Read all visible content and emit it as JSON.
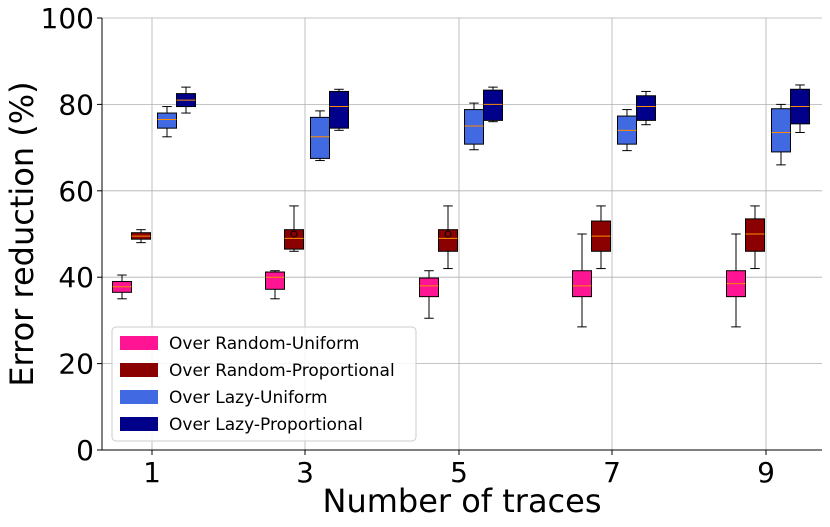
{
  "chart_data": {
    "type": "box",
    "xlabel": "Number of traces",
    "ylabel": "Error reduction (%)",
    "ylim": [
      0,
      100
    ],
    "yticks": [
      0,
      20,
      40,
      60,
      80,
      100
    ],
    "categories": [
      "1",
      "3",
      "5",
      "7",
      "9"
    ],
    "grid": true,
    "legend_position": "bottom-left",
    "series": [
      {
        "name": "Over Random-Uniform",
        "color": "#ff1493",
        "boxes": [
          {
            "whisker_low": 35.0,
            "q1": 36.5,
            "median": 37.8,
            "q3": 39.0,
            "whisker_high": 40.5,
            "outliers": []
          },
          {
            "whisker_low": 35.0,
            "q1": 37.2,
            "median": 40.0,
            "q3": 41.2,
            "whisker_high": 41.5,
            "outliers": []
          },
          {
            "whisker_low": 30.5,
            "q1": 35.5,
            "median": 38.0,
            "q3": 39.8,
            "whisker_high": 41.5,
            "outliers": []
          },
          {
            "whisker_low": 28.5,
            "q1": 35.5,
            "median": 38.0,
            "q3": 41.5,
            "whisker_high": 50.0,
            "outliers": []
          },
          {
            "whisker_low": 28.5,
            "q1": 35.5,
            "median": 38.5,
            "q3": 41.5,
            "whisker_high": 50.0,
            "outliers": []
          }
        ]
      },
      {
        "name": "Over Random-Proportional",
        "color": "#8b0000",
        "boxes": [
          {
            "whisker_low": 48.0,
            "q1": 48.8,
            "median": 49.5,
            "q3": 50.3,
            "whisker_high": 51.0,
            "outliers": []
          },
          {
            "whisker_low": 46.0,
            "q1": 46.5,
            "median": 49.0,
            "q3": 51.0,
            "whisker_high": 56.5,
            "outliers": [
              50.0
            ]
          },
          {
            "whisker_low": 42.0,
            "q1": 46.0,
            "median": 49.0,
            "q3": 51.0,
            "whisker_high": 56.5,
            "outliers": [
              50.0
            ]
          },
          {
            "whisker_low": 42.0,
            "q1": 46.0,
            "median": 49.5,
            "q3": 53.0,
            "whisker_high": 56.5,
            "outliers": []
          },
          {
            "whisker_low": 42.0,
            "q1": 46.0,
            "median": 50.0,
            "q3": 53.5,
            "whisker_high": 56.5,
            "outliers": []
          }
        ]
      },
      {
        "name": "Over Lazy-Uniform",
        "color": "#4169e1",
        "boxes": [
          {
            "whisker_low": 72.5,
            "q1": 74.5,
            "median": 76.5,
            "q3": 78.0,
            "whisker_high": 79.5,
            "outliers": []
          },
          {
            "whisker_low": 67.0,
            "q1": 67.5,
            "median": 72.5,
            "q3": 77.0,
            "whisker_high": 78.5,
            "outliers": []
          },
          {
            "whisker_low": 69.5,
            "q1": 70.8,
            "median": 75.0,
            "q3": 78.8,
            "whisker_high": 80.3,
            "outliers": []
          },
          {
            "whisker_low": 69.3,
            "q1": 70.8,
            "median": 74.0,
            "q3": 77.3,
            "whisker_high": 78.8,
            "outliers": []
          },
          {
            "whisker_low": 66.0,
            "q1": 69.0,
            "median": 73.5,
            "q3": 79.0,
            "whisker_high": 80.0,
            "outliers": []
          }
        ]
      },
      {
        "name": "Over Lazy-Proportional",
        "color": "#00008b",
        "boxes": [
          {
            "whisker_low": 78.0,
            "q1": 79.5,
            "median": 81.0,
            "q3": 82.5,
            "whisker_high": 84.0,
            "outliers": []
          },
          {
            "whisker_low": 74.0,
            "q1": 74.5,
            "median": 79.5,
            "q3": 83.0,
            "whisker_high": 83.5,
            "outliers": []
          },
          {
            "whisker_low": 76.0,
            "q1": 76.3,
            "median": 80.0,
            "q3": 83.3,
            "whisker_high": 84.0,
            "outliers": []
          },
          {
            "whisker_low": 75.3,
            "q1": 76.3,
            "median": 79.5,
            "q3": 82.0,
            "whisker_high": 83.0,
            "outliers": []
          },
          {
            "whisker_low": 73.5,
            "q1": 75.5,
            "median": 79.5,
            "q3": 83.5,
            "whisker_high": 84.5,
            "outliers": []
          }
        ]
      }
    ]
  }
}
